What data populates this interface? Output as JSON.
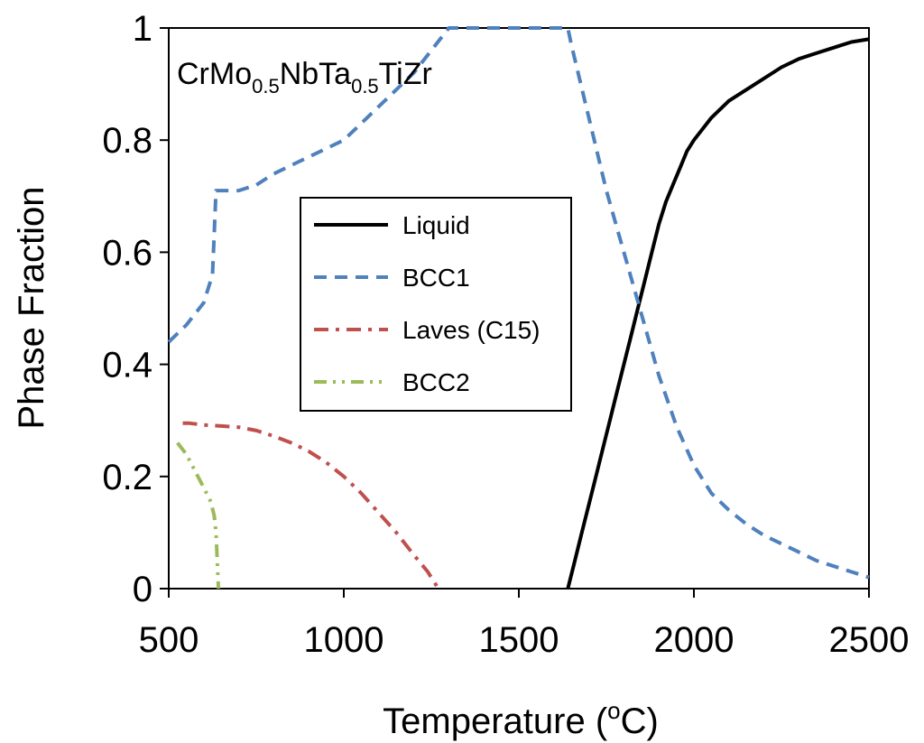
{
  "chart_data": {
    "type": "line",
    "title": "",
    "annotation": {
      "parts": [
        {
          "text": "CrMo",
          "sub": false
        },
        {
          "text": "0.5",
          "sub": true
        },
        {
          "text": "NbTa",
          "sub": false
        },
        {
          "text": "0.5",
          "sub": true
        },
        {
          "text": "TiZr",
          "sub": false
        }
      ]
    },
    "xlabel": {
      "main": "Temperature  (",
      "sup": "o",
      "end": "C)"
    },
    "ylabel": "Phase Fraction",
    "xlim": [
      500,
      2500
    ],
    "ylim": [
      0,
      1
    ],
    "xticks": [
      500,
      1000,
      1500,
      2000,
      2500
    ],
    "xtick_labels": [
      "500",
      "1000",
      "1500",
      "2000",
      "2500"
    ],
    "yticks": [
      0,
      0.2,
      0.4,
      0.6,
      0.8,
      1
    ],
    "ytick_labels": [
      "0",
      "0.2",
      "0.4",
      "0.6",
      "0.8",
      "1"
    ],
    "legend_position": "center",
    "series": [
      {
        "name": "Liquid",
        "color": "#000000",
        "style": "solid",
        "x": [
          1640,
          1660,
          1680,
          1700,
          1720,
          1740,
          1760,
          1780,
          1800,
          1820,
          1840,
          1860,
          1880,
          1900,
          1920,
          1940,
          1960,
          1980,
          2000,
          2050,
          2100,
          2150,
          2200,
          2250,
          2300,
          2350,
          2400,
          2450,
          2500
        ],
        "y": [
          0,
          0.05,
          0.1,
          0.15,
          0.2,
          0.25,
          0.3,
          0.35,
          0.4,
          0.45,
          0.5,
          0.55,
          0.6,
          0.65,
          0.69,
          0.72,
          0.75,
          0.78,
          0.8,
          0.84,
          0.87,
          0.89,
          0.91,
          0.93,
          0.945,
          0.955,
          0.965,
          0.975,
          0.98
        ]
      },
      {
        "name": "BCC1",
        "color": "#4f81bd",
        "style": "dashed",
        "x": [
          500,
          550,
          600,
          625,
          635,
          650,
          700,
          750,
          800,
          850,
          900,
          950,
          1000,
          1050,
          1100,
          1150,
          1200,
          1250,
          1300,
          1350,
          1400,
          1450,
          1500,
          1550,
          1600,
          1640,
          1650,
          1700,
          1750,
          1800,
          1850,
          1900,
          1950,
          2000,
          2050,
          2100,
          2150,
          2200,
          2250,
          2300,
          2350,
          2400,
          2450,
          2500
        ],
        "y": [
          0.44,
          0.47,
          0.51,
          0.56,
          0.71,
          0.71,
          0.71,
          0.72,
          0.74,
          0.755,
          0.77,
          0.785,
          0.8,
          0.83,
          0.86,
          0.89,
          0.92,
          0.96,
          1.0,
          1.0,
          1.0,
          1.0,
          1.0,
          1.0,
          1.0,
          1.0,
          0.97,
          0.84,
          0.71,
          0.6,
          0.49,
          0.38,
          0.29,
          0.22,
          0.17,
          0.14,
          0.115,
          0.095,
          0.08,
          0.065,
          0.05,
          0.04,
          0.03,
          0.02
        ]
      },
      {
        "name": "Laves (C15)",
        "color": "#c0504d",
        "style": "dashdot",
        "x": [
          540,
          560,
          600,
          650,
          700,
          750,
          800,
          850,
          900,
          950,
          1000,
          1050,
          1100,
          1150,
          1200,
          1240,
          1270
        ],
        "y": [
          0.295,
          0.295,
          0.292,
          0.29,
          0.288,
          0.282,
          0.272,
          0.26,
          0.245,
          0.225,
          0.2,
          0.17,
          0.135,
          0.1,
          0.06,
          0.03,
          0.0
        ]
      },
      {
        "name": "BCC2",
        "color": "#9bbb59",
        "style": "dashdotdot",
        "x": [
          525,
          550,
          575,
          600,
          620,
          630,
          635,
          638,
          640,
          642
        ],
        "y": [
          0.26,
          0.24,
          0.21,
          0.18,
          0.155,
          0.13,
          0.1,
          0.06,
          0.03,
          0.0
        ]
      }
    ]
  }
}
